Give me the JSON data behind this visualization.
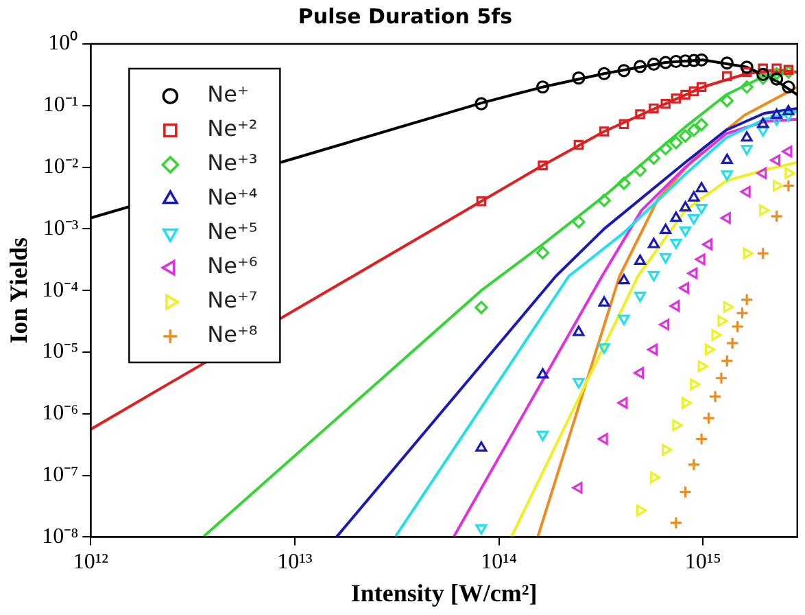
{
  "chart_data": {
    "type": "scatter",
    "title": "Pulse Duration 5fs",
    "xlabel": "Intensity [W/cm²]",
    "ylabel": "Ion Yields",
    "log": "xy",
    "legend": "top left",
    "xlim": [
      1000000000000.0,
      2900000000000000.0
    ],
    "xticks": [
      {
        "value": 1000000000000.0,
        "label": "10¹²"
      },
      {
        "value": 10000000000000.0,
        "label": "10¹³"
      },
      {
        "value": 100000000000000.0,
        "label": "10¹⁴"
      },
      {
        "value": 1000000000000000.0,
        "label": "10¹⁵"
      }
    ],
    "ylim": [
      1e-08,
      1
    ],
    "yticks": [
      {
        "value": 1e-08,
        "label": "10⁻⁸"
      },
      {
        "value": 1e-07,
        "label": "10⁻⁷"
      },
      {
        "value": 1e-06,
        "label": "10⁻⁶"
      },
      {
        "value": 1e-05,
        "label": "10⁻⁵"
      },
      {
        "value": 0.0001,
        "label": "10⁻⁴"
      },
      {
        "value": 0.001,
        "label": "10⁻³"
      },
      {
        "value": 0.01,
        "label": "10⁻²"
      },
      {
        "value": 0.1,
        "label": "10⁻¹"
      },
      {
        "value": 1,
        "label": "10⁰"
      }
    ],
    "series": [
      {
        "type": "line",
        "marker": "none",
        "color": "#000000",
        "x": [
          1000000000000.0,
          10000000000000.0,
          82000000000000.0,
          164000000000000.0,
          328000000000000.0,
          656000000000000.0,
          1000000000000000.0,
          1640000000000000.0,
          2300000000000000.0,
          2900000000000000.0
        ],
        "values": [
          0.0015,
          0.014,
          0.11,
          0.2,
          0.33,
          0.5,
          0.55,
          0.42,
          0.25,
          0.15
        ]
      },
      {
        "type": "line",
        "marker": "none",
        "color": "#e02020",
        "x": [
          1000000000000.0,
          10000000000000.0,
          82000000000000.0,
          164000000000000.0,
          328000000000000.0,
          656000000000000.0,
          1000000000000000.0,
          1640000000000000.0,
          2300000000000000.0,
          2900000000000000.0
        ],
        "values": [
          5.6e-07,
          4.8e-05,
          0.0028,
          0.0107,
          0.038,
          0.107,
          0.2,
          0.33,
          0.38,
          0.35
        ]
      },
      {
        "type": "line",
        "marker": "none",
        "color": "#33d633",
        "x": [
          3550000000000.0,
          82000000000000.0,
          164000000000000.0,
          328000000000000.0,
          820000000000000.0,
          1300000000000000.0,
          2000000000000000.0,
          2900000000000000.0
        ],
        "values": [
          1e-08,
          0.0001,
          0.00056,
          0.0034,
          0.045,
          0.15,
          0.3,
          0.35
        ]
      },
      {
        "type": "line",
        "marker": "none",
        "color": "#1a1ab8",
        "x": [
          16000000000000.0,
          190000000000000.0,
          328000000000000.0,
          820000000000000.0,
          1300000000000000.0,
          2000000000000000.0,
          2900000000000000.0
        ],
        "values": [
          1e-08,
          0.00017,
          0.001,
          0.012,
          0.04,
          0.075,
          0.09
        ]
      },
      {
        "type": "line",
        "marker": "none",
        "color": "#22dfee",
        "x": [
          31000000000000.0,
          220000000000000.0,
          410000000000000.0,
          820000000000000.0,
          1300000000000000.0,
          2000000000000000.0,
          2900000000000000.0
        ],
        "values": [
          1e-08,
          0.00017,
          0.00087,
          0.0077,
          0.03,
          0.06,
          0.08
        ]
      },
      {
        "type": "line",
        "marker": "none",
        "color": "#e030e0",
        "x": [
          60000000000000.0,
          320000000000000.0,
          500000000000000.0,
          820000000000000.0,
          1300000000000000.0,
          2000000000000000.0,
          2900000000000000.0
        ],
        "values": [
          1e-08,
          0.00017,
          0.002,
          0.01,
          0.035,
          0.055,
          0.06
        ]
      },
      {
        "type": "line",
        "marker": "none",
        "color": "#f0f020",
        "x": [
          115000000000000.0,
          480000000000000.0,
          820000000000000.0,
          1300000000000000.0,
          2000000000000000.0,
          2900000000000000.0
        ],
        "values": [
          1e-08,
          0.00017,
          0.002,
          0.006,
          0.009,
          0.012
        ]
      },
      {
        "type": "line",
        "marker": "none",
        "color": "#f08c1e",
        "x": [
          155000000000000.0,
          390000000000000.0,
          600000000000000.0,
          1000000000000000.0,
          1600000000000000.0,
          2900000000000000.0
        ],
        "values": [
          1e-08,
          0.00017,
          0.003,
          0.02,
          0.07,
          0.2
        ]
      },
      {
        "name": "Ne⁺",
        "marker": "circle",
        "color": "#000000",
        "x": [
          82000000000000.0,
          164000000000000.0,
          246000000000000.0,
          328000000000000.0,
          410000000000000.0,
          492000000000000.0,
          574000000000000.0,
          656000000000000.0,
          738000000000000.0,
          820000000000000.0,
          902000000000000.0,
          984000000000000.0,
          1312000000000000.0,
          1640000000000000.0,
          1968000000000000.0,
          2296000000000000.0,
          2624000000000000.0
        ],
        "values": [
          0.107,
          0.2,
          0.28,
          0.33,
          0.37,
          0.43,
          0.47,
          0.5,
          0.52,
          0.53,
          0.54,
          0.55,
          0.49,
          0.42,
          0.32,
          0.27,
          0.2
        ]
      },
      {
        "name": "Ne⁺²",
        "marker": "square",
        "color": "#e02020",
        "x": [
          82000000000000.0,
          164000000000000.0,
          246000000000000.0,
          328000000000000.0,
          410000000000000.0,
          492000000000000.0,
          574000000000000.0,
          656000000000000.0,
          738000000000000.0,
          820000000000000.0,
          902000000000000.0,
          984000000000000.0,
          1312000000000000.0,
          1640000000000000.0,
          1968000000000000.0,
          2296000000000000.0,
          2624000000000000.0
        ],
        "values": [
          0.0028,
          0.0107,
          0.023,
          0.038,
          0.05,
          0.072,
          0.09,
          0.107,
          0.13,
          0.15,
          0.17,
          0.2,
          0.3,
          0.35,
          0.4,
          0.4,
          0.38
        ]
      },
      {
        "name": "Ne⁺³",
        "marker": "diamond",
        "color": "#33d633",
        "x": [
          82000000000000.0,
          164000000000000.0,
          246000000000000.0,
          328000000000000.0,
          410000000000000.0,
          492000000000000.0,
          574000000000000.0,
          656000000000000.0,
          738000000000000.0,
          820000000000000.0,
          902000000000000.0,
          984000000000000.0,
          1312000000000000.0,
          1640000000000000.0,
          1968000000000000.0,
          2296000000000000.0,
          2624000000000000.0
        ],
        "values": [
          5.3e-05,
          0.00041,
          0.0013,
          0.0029,
          0.0055,
          0.0089,
          0.014,
          0.02,
          0.025,
          0.032,
          0.04,
          0.049,
          0.12,
          0.2,
          0.28,
          0.33,
          0.35
        ]
      },
      {
        "name": "Ne⁺⁴",
        "marker": "triangle",
        "color": "#1a1ab8",
        "x": [
          82000000000000.0,
          164000000000000.0,
          246000000000000.0,
          328000000000000.0,
          410000000000000.0,
          492000000000000.0,
          574000000000000.0,
          656000000000000.0,
          738000000000000.0,
          820000000000000.0,
          902000000000000.0,
          984000000000000.0,
          1312000000000000.0,
          1640000000000000.0,
          1968000000000000.0,
          2296000000000000.0,
          2624000000000000.0
        ],
        "values": [
          2.8e-07,
          4.3e-06,
          2.1e-05,
          6.3e-05,
          0.000145,
          0.0003,
          0.00056,
          0.00095,
          0.0015,
          0.0022,
          0.0032,
          0.0045,
          0.013,
          0.03,
          0.05,
          0.07,
          0.08
        ]
      },
      {
        "name": "Ne⁺⁵",
        "marker": "triangle-down",
        "color": "#22dfee",
        "x": [
          82000000000000.0,
          164000000000000.0,
          246000000000000.0,
          328000000000000.0,
          410000000000000.0,
          492000000000000.0,
          574000000000000.0,
          656000000000000.0,
          738000000000000.0,
          820000000000000.0,
          902000000000000.0,
          984000000000000.0,
          1312000000000000.0,
          1640000000000000.0,
          1968000000000000.0,
          2296000000000000.0,
          2624000000000000.0
        ],
        "values": [
          1.4e-08,
          4.6e-07,
          3.3e-06,
          1.2e-05,
          3.5e-05,
          8.3e-05,
          0.00018,
          0.00035,
          0.0006,
          0.00095,
          0.0015,
          0.0022,
          0.0077,
          0.02,
          0.04,
          0.06,
          0.07
        ]
      },
      {
        "name": "Ne⁺⁶",
        "marker": "triangle-left",
        "color": "#e030e0",
        "x": [
          246000000000000.0,
          328000000000000.0,
          410000000000000.0,
          492000000000000.0,
          574000000000000.0,
          656000000000000.0,
          738000000000000.0,
          820000000000000.0,
          902000000000000.0,
          984000000000000.0,
          1066000000000000.0,
          1312000000000000.0,
          1640000000000000.0,
          1968000000000000.0,
          2296000000000000.0,
          2624000000000000.0
        ],
        "values": [
          6.3e-08,
          3.9e-07,
          1.5e-06,
          4.6e-06,
          1.1e-05,
          2.8e-05,
          5.6e-05,
          0.00011,
          0.00019,
          0.00032,
          0.00056,
          0.0015,
          0.004,
          0.008,
          0.013,
          0.018
        ]
      },
      {
        "name": "Ne⁺⁷",
        "marker": "triangle-right",
        "color": "#f0f020",
        "x": [
          492000000000000.0,
          574000000000000.0,
          656000000000000.0,
          738000000000000.0,
          820000000000000.0,
          902000000000000.0,
          984000000000000.0,
          1066000000000000.0,
          1148000000000000.0,
          1230000000000000.0,
          1312000000000000.0,
          1640000000000000.0,
          1968000000000000.0,
          2296000000000000.0,
          2624000000000000.0
        ],
        "values": [
          2.7e-08,
          9.3e-08,
          2.6e-07,
          6.5e-07,
          1.5e-06,
          3e-06,
          5.9e-06,
          1.1e-05,
          1.9e-05,
          3.2e-05,
          5.4e-05,
          0.0004,
          0.002,
          0.005,
          0.008
        ]
      },
      {
        "name": "Ne⁺⁸",
        "marker": "cross",
        "color": "#f08c1e",
        "x": [
          738000000000000.0,
          820000000000000.0,
          902000000000000.0,
          984000000000000.0,
          1066000000000000.0,
          1148000000000000.0,
          1230000000000000.0,
          1312000000000000.0,
          1394000000000000.0,
          1476000000000000.0,
          1558000000000000.0,
          1640000000000000.0,
          1968000000000000.0,
          2296000000000000.0,
          2624000000000000.0
        ],
        "values": [
          1.7e-08,
          5.4e-08,
          1.5e-07,
          3.9e-07,
          8.5e-07,
          1.9e-06,
          3.8e-06,
          7.2e-06,
          1.4e-05,
          2.6e-05,
          4.3e-05,
          7.1e-05,
          0.0004,
          0.0016,
          0.005
        ]
      }
    ]
  }
}
